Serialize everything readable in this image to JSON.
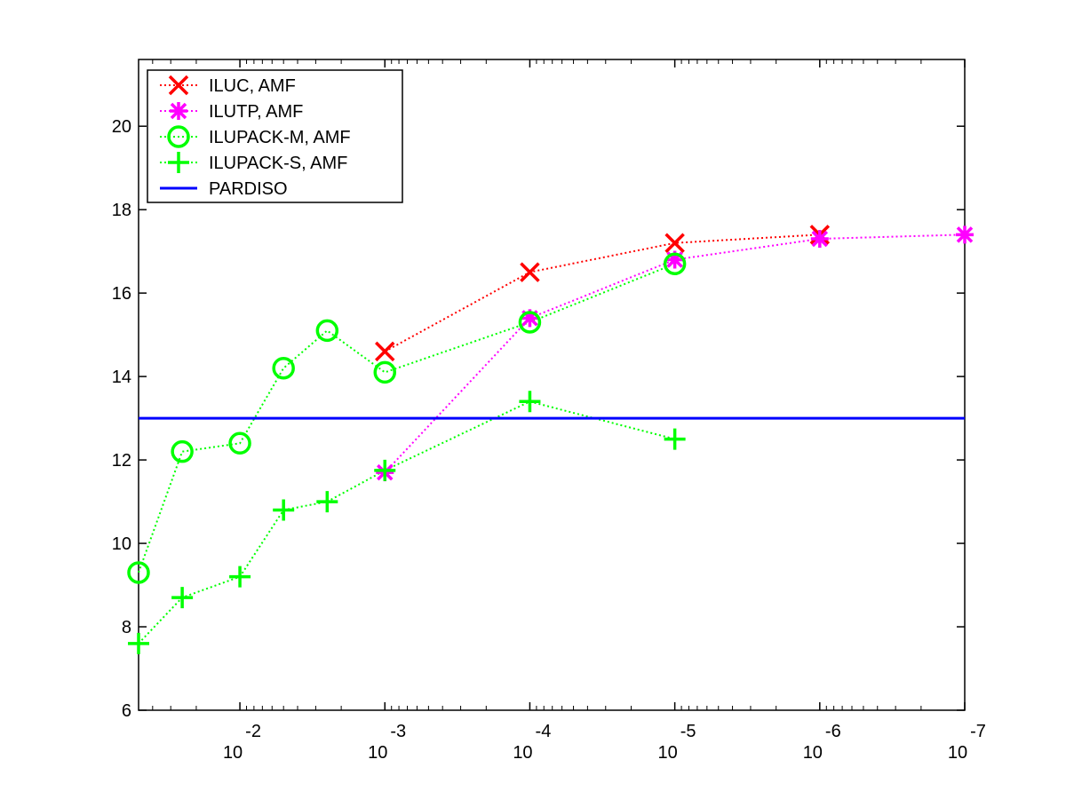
{
  "chart_data": {
    "type": "line",
    "title": "",
    "xlabel": "",
    "ylabel": "",
    "xscale": "log",
    "xaxis_reversed": true,
    "xlim": [
      0.05,
      1e-07
    ],
    "ylim": [
      6,
      21.6
    ],
    "grid": false,
    "legend_position": "top-left",
    "x_ticks": [
      {
        "value": 0.01,
        "base": "10",
        "exp": "-2"
      },
      {
        "value": 0.001,
        "base": "10",
        "exp": "-3"
      },
      {
        "value": 0.0001,
        "base": "10",
        "exp": "-4"
      },
      {
        "value": 1e-05,
        "base": "10",
        "exp": "-5"
      },
      {
        "value": 1e-06,
        "base": "10",
        "exp": "-6"
      },
      {
        "value": 1e-07,
        "base": "10",
        "exp": "-7"
      }
    ],
    "y_ticks": [
      "6",
      "8",
      "10",
      "12",
      "14",
      "16",
      "18",
      "20"
    ],
    "series": [
      {
        "name": "ILUC, AMF",
        "color": "#ff0000",
        "marker": "x",
        "line": "dotted",
        "points": [
          [
            0.001,
            14.6
          ],
          [
            0.0001,
            16.5
          ],
          [
            1e-05,
            17.2
          ],
          [
            1e-06,
            17.4
          ]
        ]
      },
      {
        "name": "ILUTP, AMF",
        "color": "#ff00ff",
        "marker": "asterisk",
        "line": "dotted",
        "points": [
          [
            0.001,
            11.7
          ],
          [
            0.0001,
            15.4
          ],
          [
            1e-05,
            16.8
          ],
          [
            1e-06,
            17.3
          ],
          [
            1e-07,
            17.4
          ]
        ]
      },
      {
        "name": "ILUPACK-M, AMF",
        "color": "#00ff00",
        "marker": "circle",
        "line": "dotted",
        "points": [
          [
            0.05,
            9.3
          ],
          [
            0.025,
            12.2
          ],
          [
            0.01,
            12.4
          ],
          [
            0.005,
            14.2
          ],
          [
            0.0025,
            15.1
          ],
          [
            0.001,
            14.1
          ],
          [
            0.0001,
            15.3
          ],
          [
            1e-05,
            16.7
          ]
        ]
      },
      {
        "name": "ILUPACK-S, AMF",
        "color": "#00ff00",
        "marker": "plus",
        "line": "dotted",
        "points": [
          [
            0.05,
            7.6
          ],
          [
            0.025,
            8.7
          ],
          [
            0.01,
            9.2
          ],
          [
            0.005,
            10.8
          ],
          [
            0.0025,
            11.0
          ],
          [
            0.001,
            11.75
          ],
          [
            0.0001,
            13.4
          ],
          [
            1e-05,
            12.5
          ]
        ]
      },
      {
        "name": "PARDISO",
        "color": "#0000ff",
        "marker": "none",
        "line": "solid",
        "constant": 13.0
      }
    ]
  }
}
